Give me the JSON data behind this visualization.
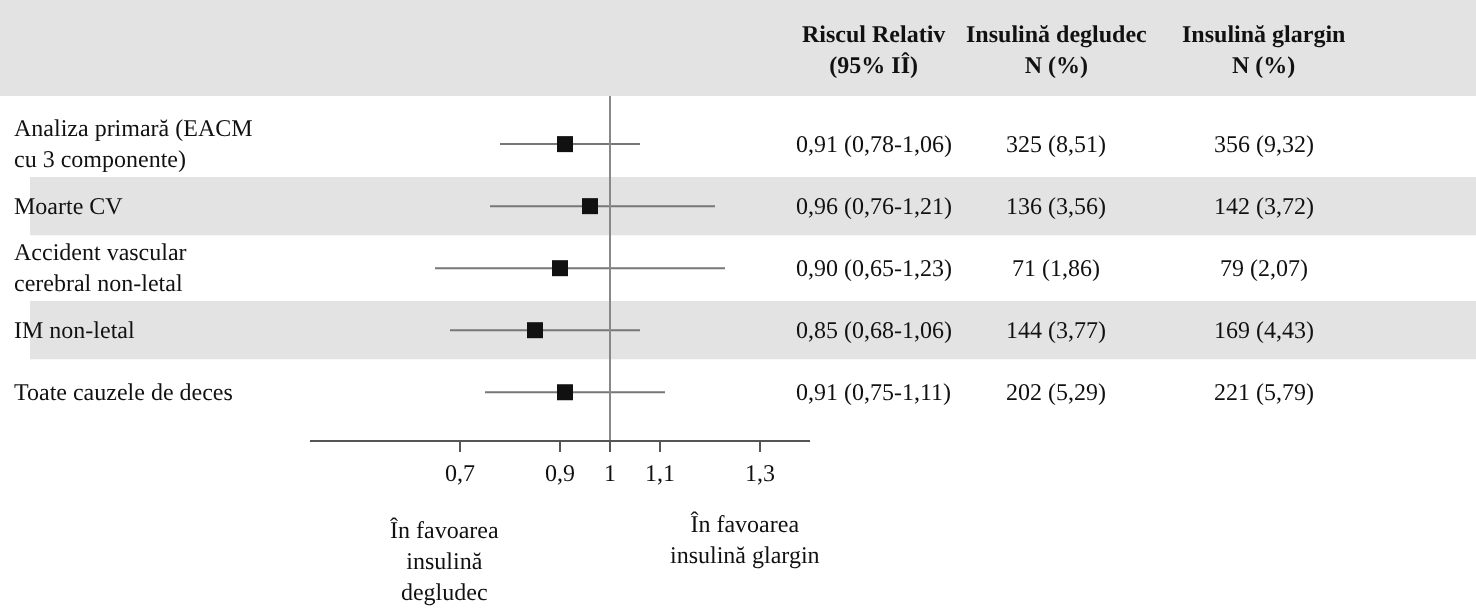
{
  "chart_data": {
    "type": "scatter",
    "orientation": "horizontal",
    "marker": "square",
    "color": "#111111",
    "categories": [
      "Analiza primară (EACM cu 3 componente)",
      "Moarte CV",
      "Accident vascular cerebral non-letal",
      "IM non-letal",
      "Toate cauzele de deces"
    ],
    "values": [
      0.91,
      0.96,
      0.9,
      0.85,
      0.91
    ],
    "errors": [
      [
        0.78,
        1.06
      ],
      [
        0.76,
        1.21
      ],
      [
        0.65,
        1.23
      ],
      [
        0.68,
        1.06
      ],
      [
        0.75,
        1.11
      ]
    ],
    "value_labels": [
      "0,91 (0,78-1,06)",
      "0,96 (0,76-1,21)",
      "0,90 (0,65-1,23)",
      "0,85 (0,68-1,06)",
      "0,91 (0,75-1,11)"
    ],
    "xlim": [
      0.4,
      1.4
    ],
    "xticks": [
      {
        "value": 0.7,
        "label": "0,7"
      },
      {
        "value": 0.9,
        "label": "0,9"
      },
      {
        "value": 1,
        "label": "1"
      },
      {
        "value": 1.1,
        "label": "1,1"
      },
      {
        "value": 1.3,
        "label": "1,3"
      }
    ],
    "ref_lines": [
      {
        "axis": "x",
        "value": 1,
        "color": "#888888"
      }
    ],
    "annotations": [
      "Riscul Relativ\n(95% IÎ)",
      "Insulină degludec\nN (%)",
      "Insulină glargin\nN (%)",
      "În favoarea\ninsulină\ndegludec",
      "În favoarea\ninsulină glargin",
      "325 (8,51)",
      "356 (9,32)",
      "136 (3,56)",
      "142 (3,72)",
      "71 (1,86)",
      "79 (2,07)",
      "144 (3,77)",
      "169 (4,43)",
      "202 (5,29)",
      "221 (5,79)"
    ]
  }
}
